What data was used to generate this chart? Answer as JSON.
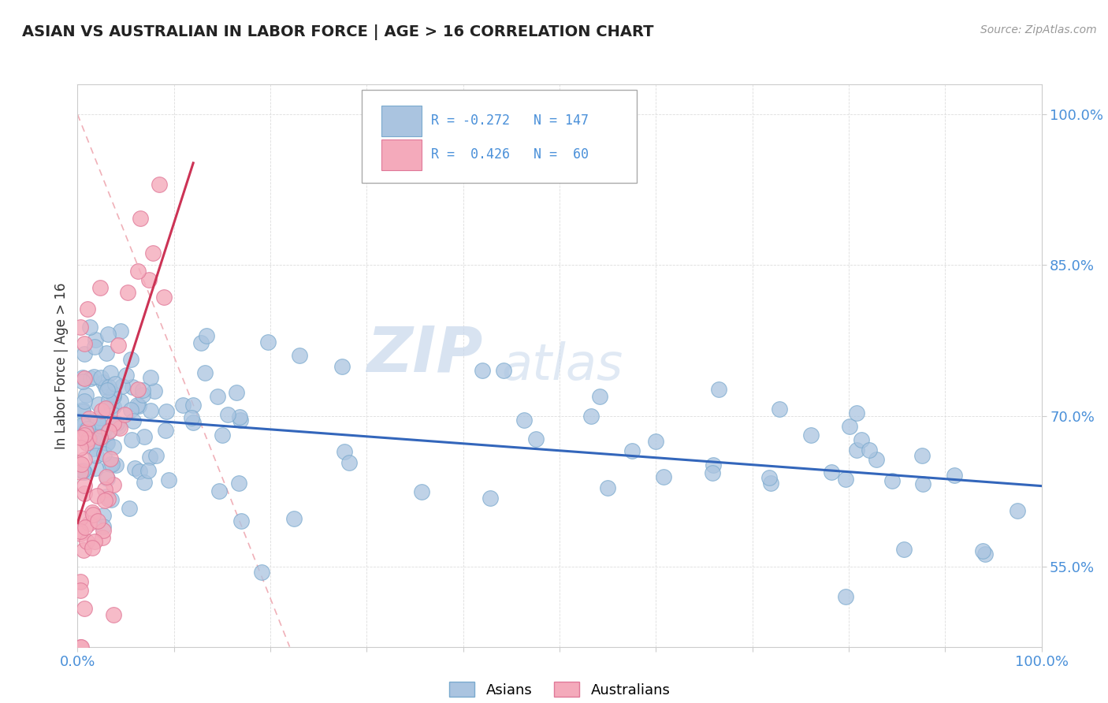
{
  "title": "ASIAN VS AUSTRALIAN IN LABOR FORCE | AGE > 16 CORRELATION CHART",
  "source_text": "Source: ZipAtlas.com",
  "ylabel": "In Labor Force | Age > 16",
  "xlim": [
    0.0,
    1.0
  ],
  "ylim": [
    0.47,
    1.03
  ],
  "yticks": [
    0.55,
    0.7,
    0.85,
    1.0
  ],
  "ytick_labels": [
    "55.0%",
    "70.0%",
    "85.0%",
    "100.0%"
  ],
  "asian_color": "#aac4e0",
  "australian_color": "#f4aabb",
  "asian_edge": "#7aaace",
  "australian_edge": "#e07898",
  "trend_asian_color": "#3366bb",
  "trend_australian_color": "#cc3355",
  "R_asian": -0.272,
  "N_asian": 147,
  "R_australian": 0.426,
  "N_australian": 60,
  "watermark_zip": "ZIP",
  "watermark_atlas": "atlas",
  "legend_asian_label": "Asians",
  "legend_australian_label": "Australians",
  "ref_line_color": "#f0b0b8",
  "ref_line_style": "--",
  "grid_color": "#dddddd",
  "spine_color": "#cccccc",
  "tick_color": "#4a90d9",
  "title_color": "#222222",
  "source_color": "#999999",
  "ylabel_color": "#333333",
  "bg_color": "#ffffff"
}
